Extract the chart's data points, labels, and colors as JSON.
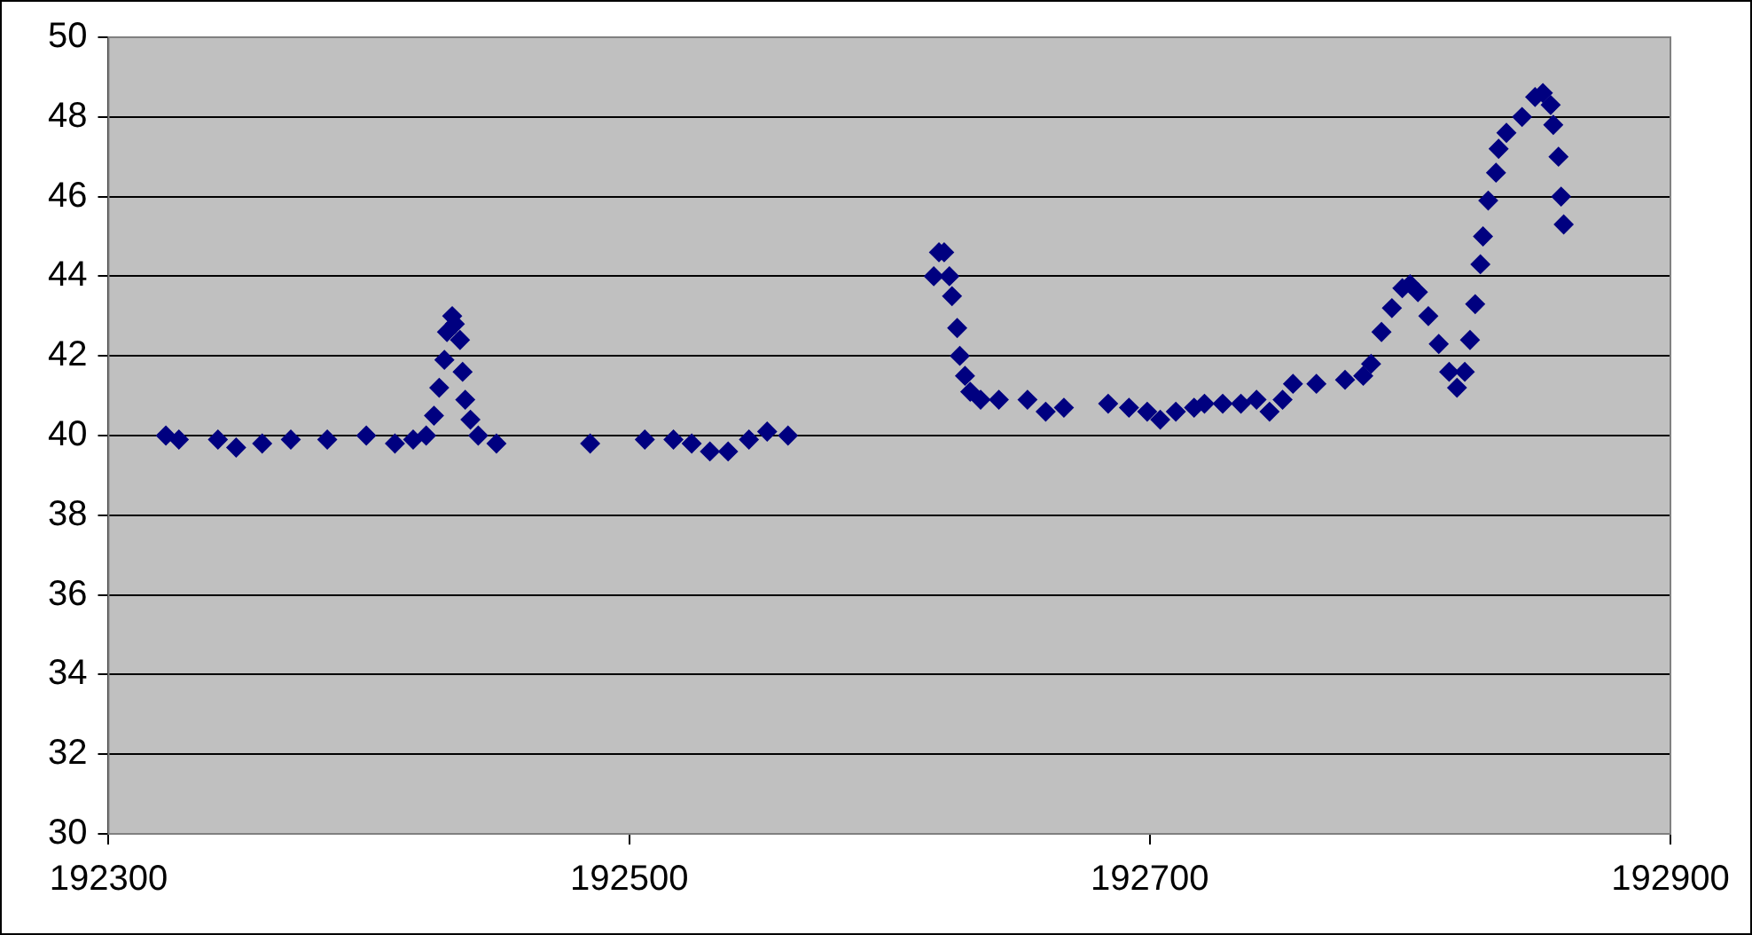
{
  "chart_data": {
    "type": "scatter",
    "marker": "diamond",
    "grid": "y",
    "legend": false,
    "xlim": [
      192300,
      192900
    ],
    "xticks": [
      192300,
      192500,
      192700,
      192900
    ],
    "ylim": [
      30,
      50
    ],
    "yticks": [
      30,
      32,
      34,
      36,
      38,
      40,
      42,
      44,
      46,
      48,
      50
    ],
    "series": [
      {
        "color": "#000080",
        "x": [
          192322,
          192327,
          192342,
          192349,
          192359,
          192370,
          192384,
          192399,
          192410,
          192417,
          192422,
          192425,
          192427,
          192429,
          192430,
          192432,
          192433,
          192435,
          192436,
          192437,
          192439,
          192442,
          192449,
          192485,
          192506,
          192517,
          192524,
          192531,
          192538,
          192546,
          192553,
          192561,
          192617,
          192619,
          192621,
          192623,
          192624,
          192626,
          192627,
          192629,
          192631,
          192635,
          192642,
          192653,
          192660,
          192667,
          192684,
          192692,
          192699,
          192704,
          192710,
          192717,
          192721,
          192728,
          192735,
          192741,
          192746,
          192751,
          192755,
          192764,
          192775,
          192782,
          192785,
          192789,
          192793,
          192797,
          192800,
          192803,
          192807,
          192811,
          192815,
          192818,
          192821,
          192823,
          192825,
          192827,
          192828,
          192830,
          192833,
          192834,
          192837,
          192843,
          192848,
          192851,
          192854,
          192855,
          192857,
          192858,
          192859
        ],
        "values": [
          40.0,
          39.9,
          39.9,
          39.7,
          39.8,
          39.9,
          39.9,
          40.0,
          39.8,
          39.9,
          40.0,
          40.5,
          41.2,
          41.9,
          42.6,
          43.0,
          42.8,
          42.4,
          41.6,
          40.9,
          40.4,
          40.0,
          39.8,
          39.8,
          39.9,
          39.9,
          39.8,
          39.6,
          39.6,
          39.9,
          40.1,
          40.0,
          44.0,
          44.6,
          44.6,
          44.0,
          43.5,
          42.7,
          42.0,
          41.5,
          41.1,
          40.9,
          40.9,
          40.9,
          40.6,
          40.7,
          40.8,
          40.7,
          40.6,
          40.4,
          40.6,
          40.7,
          40.8,
          40.8,
          40.8,
          40.9,
          40.6,
          40.9,
          41.3,
          41.3,
          41.4,
          41.5,
          41.8,
          42.6,
          43.2,
          43.7,
          43.8,
          43.6,
          43.0,
          42.3,
          41.6,
          41.2,
          41.6,
          42.4,
          43.3,
          44.3,
          45.0,
          45.9,
          46.6,
          47.2,
          47.6,
          48.0,
          48.5,
          48.6,
          48.3,
          47.8,
          47.0,
          46.0,
          45.3
        ]
      }
    ]
  }
}
